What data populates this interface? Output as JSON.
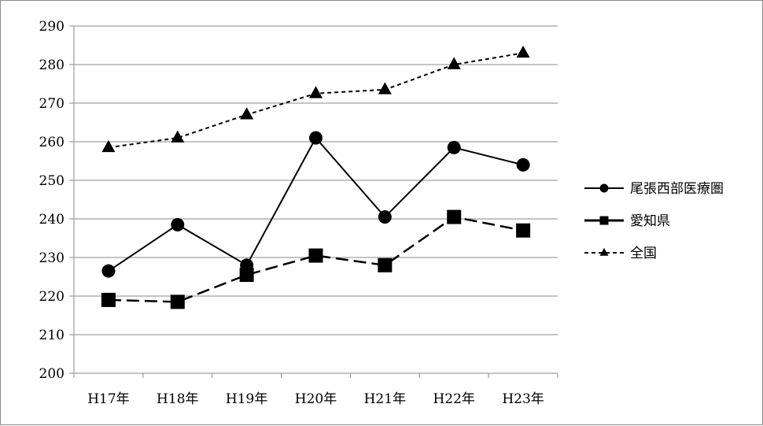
{
  "chart_data": {
    "type": "line",
    "title": "",
    "xlabel": "",
    "ylabel": "",
    "categories": [
      "H17年",
      "H18年",
      "H19年",
      "H20年",
      "H21年",
      "H22年",
      "H23年"
    ],
    "y_ticks": [
      "200",
      "210",
      "220",
      "230",
      "240",
      "250",
      "260",
      "270",
      "280",
      "290"
    ],
    "ylim": [
      200,
      290
    ],
    "grid": "horizontal",
    "legend_position": "right",
    "series": [
      {
        "name": "尾張西部医療圏",
        "values": [
          226.5,
          238.5,
          228,
          261,
          240.5,
          258.5,
          254
        ],
        "marker": "circle",
        "line_style": "solid",
        "color": "#000000"
      },
      {
        "name": "愛知県",
        "values": [
          219,
          218.5,
          225.5,
          230.5,
          228,
          240.5,
          237
        ],
        "marker": "square",
        "line_style": "dashed",
        "color": "#000000"
      },
      {
        "name": "全国",
        "values": [
          258.5,
          261,
          267,
          272.5,
          273.5,
          280,
          283
        ],
        "marker": "triangle",
        "line_style": "dotted",
        "color": "#000000"
      }
    ]
  }
}
